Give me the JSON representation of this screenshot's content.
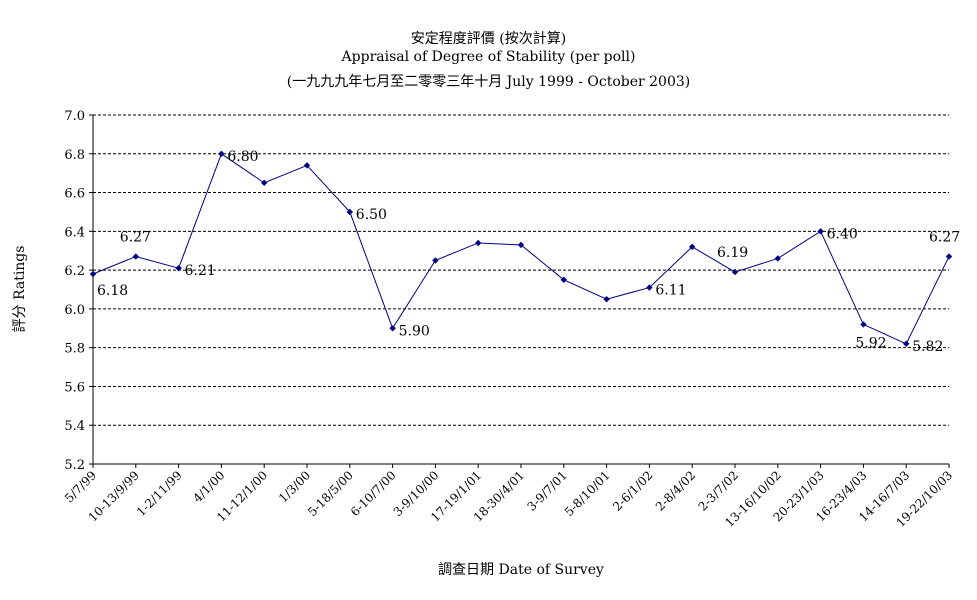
{
  "chart_data": {
    "type": "line",
    "title": "安定程度評價 (按次計算)",
    "subtitle": "Appraisal of Degree of Stability (per poll)",
    "period": "(一九九九年七月至二零零三年十月 July 1999 - October 2003)",
    "xlabel": "調查日期 Date of Survey",
    "ylabel": "評分 Ratings",
    "ylim": [
      5.2,
      7.0
    ],
    "yticks": [
      "7.0",
      "6.8",
      "6.6",
      "6.4",
      "6.2",
      "6.0",
      "5.8",
      "5.6",
      "5.4",
      "5.2"
    ],
    "grid": true,
    "line_color": "#000080",
    "categories": [
      "5/7/99",
      "10-13/9/99",
      "1-2/11/99",
      "4/1/00",
      "11-12/1/00",
      "1/3/00",
      "5-18/5/00",
      "6-10/7/00",
      "3-9/10/00",
      "17-19/1/01",
      "18-30/4/01",
      "3-9/7/01",
      "5-8/10/01",
      "2-6/1/02",
      "2-8/4/02",
      "2-3/7/02",
      "13-16/10/02",
      "20-23/1/03",
      "16-23/4/03",
      "14-16/7/03",
      "19-22/10/03"
    ],
    "values": [
      6.18,
      6.27,
      6.21,
      6.8,
      6.65,
      6.74,
      6.5,
      5.9,
      6.25,
      6.34,
      6.33,
      6.15,
      6.05,
      6.11,
      6.32,
      6.19,
      6.26,
      6.4,
      5.92,
      5.82,
      6.27
    ],
    "data_labels": [
      {
        "index": 0,
        "text": "6.18"
      },
      {
        "index": 1,
        "text": "6.27"
      },
      {
        "index": 2,
        "text": "6.21"
      },
      {
        "index": 3,
        "text": "6.80"
      },
      {
        "index": 6,
        "text": "6.50"
      },
      {
        "index": 7,
        "text": "5.90"
      },
      {
        "index": 13,
        "text": "6.11"
      },
      {
        "index": 15,
        "text": "6.19"
      },
      {
        "index": 17,
        "text": "6.40"
      },
      {
        "index": 18,
        "text": "5.92"
      },
      {
        "index": 19,
        "text": "5.82"
      },
      {
        "index": 20,
        "text": "6.27"
      }
    ]
  }
}
